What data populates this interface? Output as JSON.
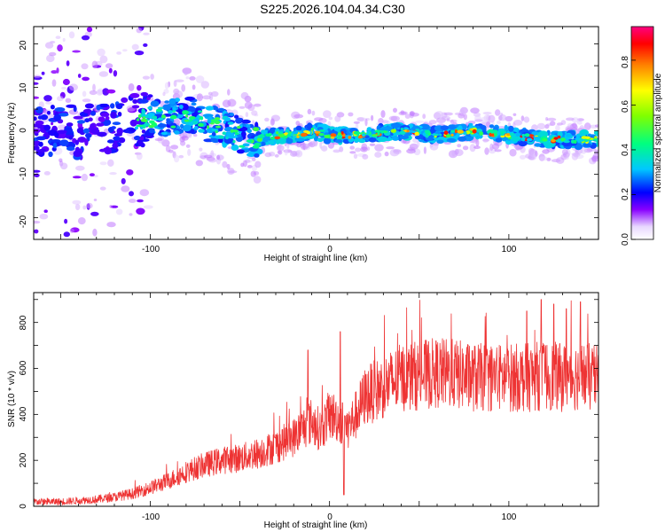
{
  "title": "S225.2026.104.04.34.C30",
  "colors": {
    "snr_line": "#ee3333",
    "ridge": "#1500ff"
  },
  "chart_data": [
    {
      "type": "heatmap",
      "xlabel": "Height of straight line (km)",
      "ylabel": "Frequency (Hz)",
      "xlim": [
        -165,
        150
      ],
      "ylim": [
        -25,
        24
      ],
      "x_ticks": [
        "-100",
        "0",
        "100"
      ],
      "y_ticks": [
        "-20",
        "-10",
        "0",
        "10",
        "20"
      ],
      "ridge": {
        "x": [
          -165,
          -140,
          -120,
          -100,
          -90,
          -80,
          -70,
          -60,
          -50,
          -40,
          -30,
          -20,
          -10,
          0,
          20,
          40,
          60,
          80,
          100,
          120,
          140,
          150
        ],
        "y": [
          0,
          0,
          1,
          3,
          3,
          4,
          2,
          1,
          -1,
          -2,
          -1,
          -1,
          0,
          -1,
          -1,
          0,
          -1,
          0,
          -1,
          -2,
          -2,
          -2
        ]
      },
      "colorbar": {
        "label": "Normalized spectral amplitude",
        "range": [
          0,
          0.95
        ],
        "ticks": [
          "0.0",
          "0.2",
          "0.4",
          "0.6",
          "0.8"
        ]
      }
    },
    {
      "type": "line",
      "xlabel": "Height of straight line (km)",
      "ylabel": "SNR (10 * v/v)",
      "xlim": [
        -165,
        150
      ],
      "ylim": [
        0,
        930
      ],
      "x_ticks": [
        "-100",
        "0",
        "100"
      ],
      "y_ticks": [
        "0",
        "200",
        "400",
        "600",
        "800"
      ],
      "series": [
        {
          "name": "",
          "x": [
            -165,
            -150,
            -140,
            -130,
            -120,
            -110,
            -100,
            -90,
            -80,
            -70,
            -60,
            -50,
            -40,
            -30,
            -20,
            -15,
            -10,
            -5,
            0,
            5,
            10,
            15,
            20,
            30,
            40,
            50,
            60,
            70,
            80,
            90,
            100,
            110,
            120,
            130,
            140,
            150
          ],
          "y": [
            20,
            20,
            25,
            30,
            40,
            55,
            80,
            110,
            150,
            180,
            200,
            210,
            230,
            260,
            300,
            340,
            370,
            330,
            400,
            380,
            340,
            400,
            480,
            520,
            560,
            570,
            580,
            575,
            560,
            560,
            560,
            560,
            570,
            560,
            570,
            550
          ]
        }
      ],
      "spikes": {
        "x": [
          -12,
          6,
          8,
          110,
          118,
          125,
          132,
          140
        ],
        "y": [
          680,
          760,
          50,
          850,
          900,
          880,
          860,
          890
        ]
      }
    }
  ],
  "colorbar_ticks": [
    "0.0",
    "0.2",
    "0.4",
    "0.6",
    "0.8"
  ]
}
